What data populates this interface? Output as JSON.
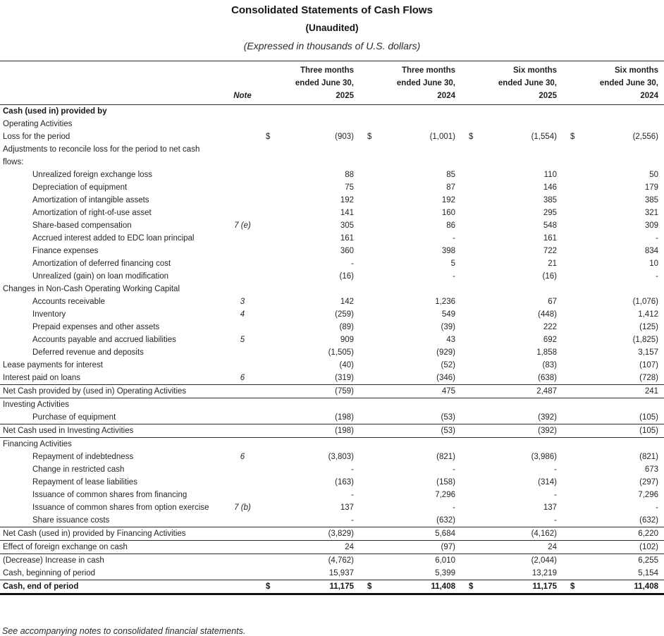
{
  "header": {
    "title": "Consolidated Statements of Cash Flows",
    "subtitle": "(Unaudited)",
    "expressed_in": "(Expressed in thousands of U.S. dollars)"
  },
  "table": {
    "note_header": "Note",
    "currency_symbol": "$",
    "period_columns": [
      "Three months\nended June 30,\n2025",
      "Three months\nended June 30,\n2024",
      "Six months\nended June 30,\n2025",
      "Six months\nended June 30,\n2024"
    ],
    "rows": [
      {
        "label": "Cash (used in) provided by",
        "bold": true
      },
      {
        "label": "Operating Activities"
      },
      {
        "label": "Loss for the period",
        "dollar": true,
        "values": [
          "(903)",
          "(1,001)",
          "(1,554)",
          "(2,556)"
        ]
      },
      {
        "label": "Adjustments to reconcile loss for the period to net cash"
      },
      {
        "label": "flows:"
      },
      {
        "label": "Unrealized foreign exchange loss",
        "indent": true,
        "values": [
          "88",
          "85",
          "110",
          "50"
        ]
      },
      {
        "label": "Depreciation of equipment",
        "indent": true,
        "values": [
          "75",
          "87",
          "146",
          "179"
        ]
      },
      {
        "label": "Amortization of intangible assets",
        "indent": true,
        "values": [
          "192",
          "192",
          "385",
          "385"
        ]
      },
      {
        "label": "Amortization of right-of-use asset",
        "indent": true,
        "values": [
          "141",
          "160",
          "295",
          "321"
        ]
      },
      {
        "label": "Share-based compensation",
        "indent": true,
        "note": "7 (e)",
        "values": [
          "305",
          "86",
          "548",
          "309"
        ]
      },
      {
        "label": "Accrued interest added to EDC loan principal",
        "indent": true,
        "values": [
          "161",
          "-",
          "161",
          "-"
        ]
      },
      {
        "label": "Finance expenses",
        "indent": true,
        "values": [
          "360",
          "398",
          "722",
          "834"
        ]
      },
      {
        "label": "Amortization of deferred financing cost",
        "indent": true,
        "values": [
          "-",
          "5",
          "21",
          "10"
        ]
      },
      {
        "label": "Unrealized (gain) on loan modification",
        "indent": true,
        "values": [
          "(16)",
          "-",
          "(16)",
          "-"
        ]
      },
      {
        "label": "Changes in Non-Cash Operating Working Capital"
      },
      {
        "label": "Accounts receivable",
        "indent": true,
        "note": "3",
        "values": [
          "142",
          "1,236",
          "67",
          "(1,076)"
        ]
      },
      {
        "label": "Inventory",
        "indent": true,
        "note": "4",
        "values": [
          "(259)",
          "549",
          "(448)",
          "1,412"
        ]
      },
      {
        "label": "Prepaid expenses and other assets",
        "indent": true,
        "values": [
          "(89)",
          "(39)",
          "222",
          "(125)"
        ]
      },
      {
        "label": "Accounts payable and accrued liabilities",
        "indent": true,
        "note": "5",
        "values": [
          "909",
          "43",
          "692",
          "(1,825)"
        ]
      },
      {
        "label": "Deferred revenue and deposits",
        "indent": true,
        "values": [
          "(1,505)",
          "(929)",
          "1,858",
          "3,157"
        ]
      },
      {
        "label": "Lease payments for interest",
        "values": [
          "(40)",
          "(52)",
          "(83)",
          "(107)"
        ]
      },
      {
        "label": "Interest paid on loans",
        "note": "6",
        "values": [
          "(319)",
          "(346)",
          "(638)",
          "(728)"
        ],
        "rule": "bottom"
      },
      {
        "label": "Net Cash provided by (used in) Operating Activities",
        "values": [
          "(759)",
          "475",
          "2,487",
          "241"
        ],
        "rule": "bottom"
      },
      {
        "label": "Investing Activities"
      },
      {
        "label": "Purchase of equipment",
        "indent": true,
        "values": [
          "(198)",
          "(53)",
          "(392)",
          "(105)"
        ],
        "rule": "bottom"
      },
      {
        "label": "Net Cash used in Investing Activities",
        "values": [
          "(198)",
          "(53)",
          "(392)",
          "(105)"
        ],
        "rule": "bottom"
      },
      {
        "label": "Financing Activities"
      },
      {
        "label": "Repayment of indebtedness",
        "indent": true,
        "note": "6",
        "values": [
          "(3,803)",
          "(821)",
          "(3,986)",
          "(821)"
        ]
      },
      {
        "label": "Change in restricted cash",
        "indent": true,
        "values": [
          "-",
          "-",
          "-",
          "673"
        ]
      },
      {
        "label": "Repayment of lease liabilities",
        "indent": true,
        "values": [
          "(163)",
          "(158)",
          "(314)",
          "(297)"
        ]
      },
      {
        "label": "Issuance of common shares from financing",
        "indent": true,
        "values": [
          "-",
          "7,296",
          "-",
          "7,296"
        ]
      },
      {
        "label": "Issuance of common shares from option exercise",
        "indent": true,
        "note": "7 (b)",
        "values": [
          "137",
          "-",
          "137",
          "-"
        ]
      },
      {
        "label": "Share issuance costs",
        "indent": true,
        "values": [
          "-",
          "(632)",
          "-",
          "(632)"
        ],
        "rule": "bottom"
      },
      {
        "label": "Net Cash (used in) provided by Financing Activities",
        "values": [
          "(3,829)",
          "5,684",
          "(4,162)",
          "6,220"
        ],
        "rule": "bottom"
      },
      {
        "label": "Effect of foreign exchange on cash",
        "values": [
          "24",
          "(97)",
          "24",
          "(102)"
        ],
        "rule": "bottom"
      },
      {
        "label": "(Decrease) Increase in cash",
        "values": [
          "(4,762)",
          "6,010",
          "(2,044)",
          "6,255"
        ]
      },
      {
        "label": "Cash, beginning of period",
        "values": [
          "15,937",
          "5,399",
          "13,219",
          "5,154"
        ],
        "rule": "bottom"
      },
      {
        "label": "Cash, end of period",
        "bold": true,
        "dollar": true,
        "values": [
          "11,175",
          "11,408",
          "11,175",
          "11,408"
        ],
        "rule": "thick"
      }
    ]
  },
  "footer": {
    "note": "See accompanying notes to consolidated financial statements."
  }
}
